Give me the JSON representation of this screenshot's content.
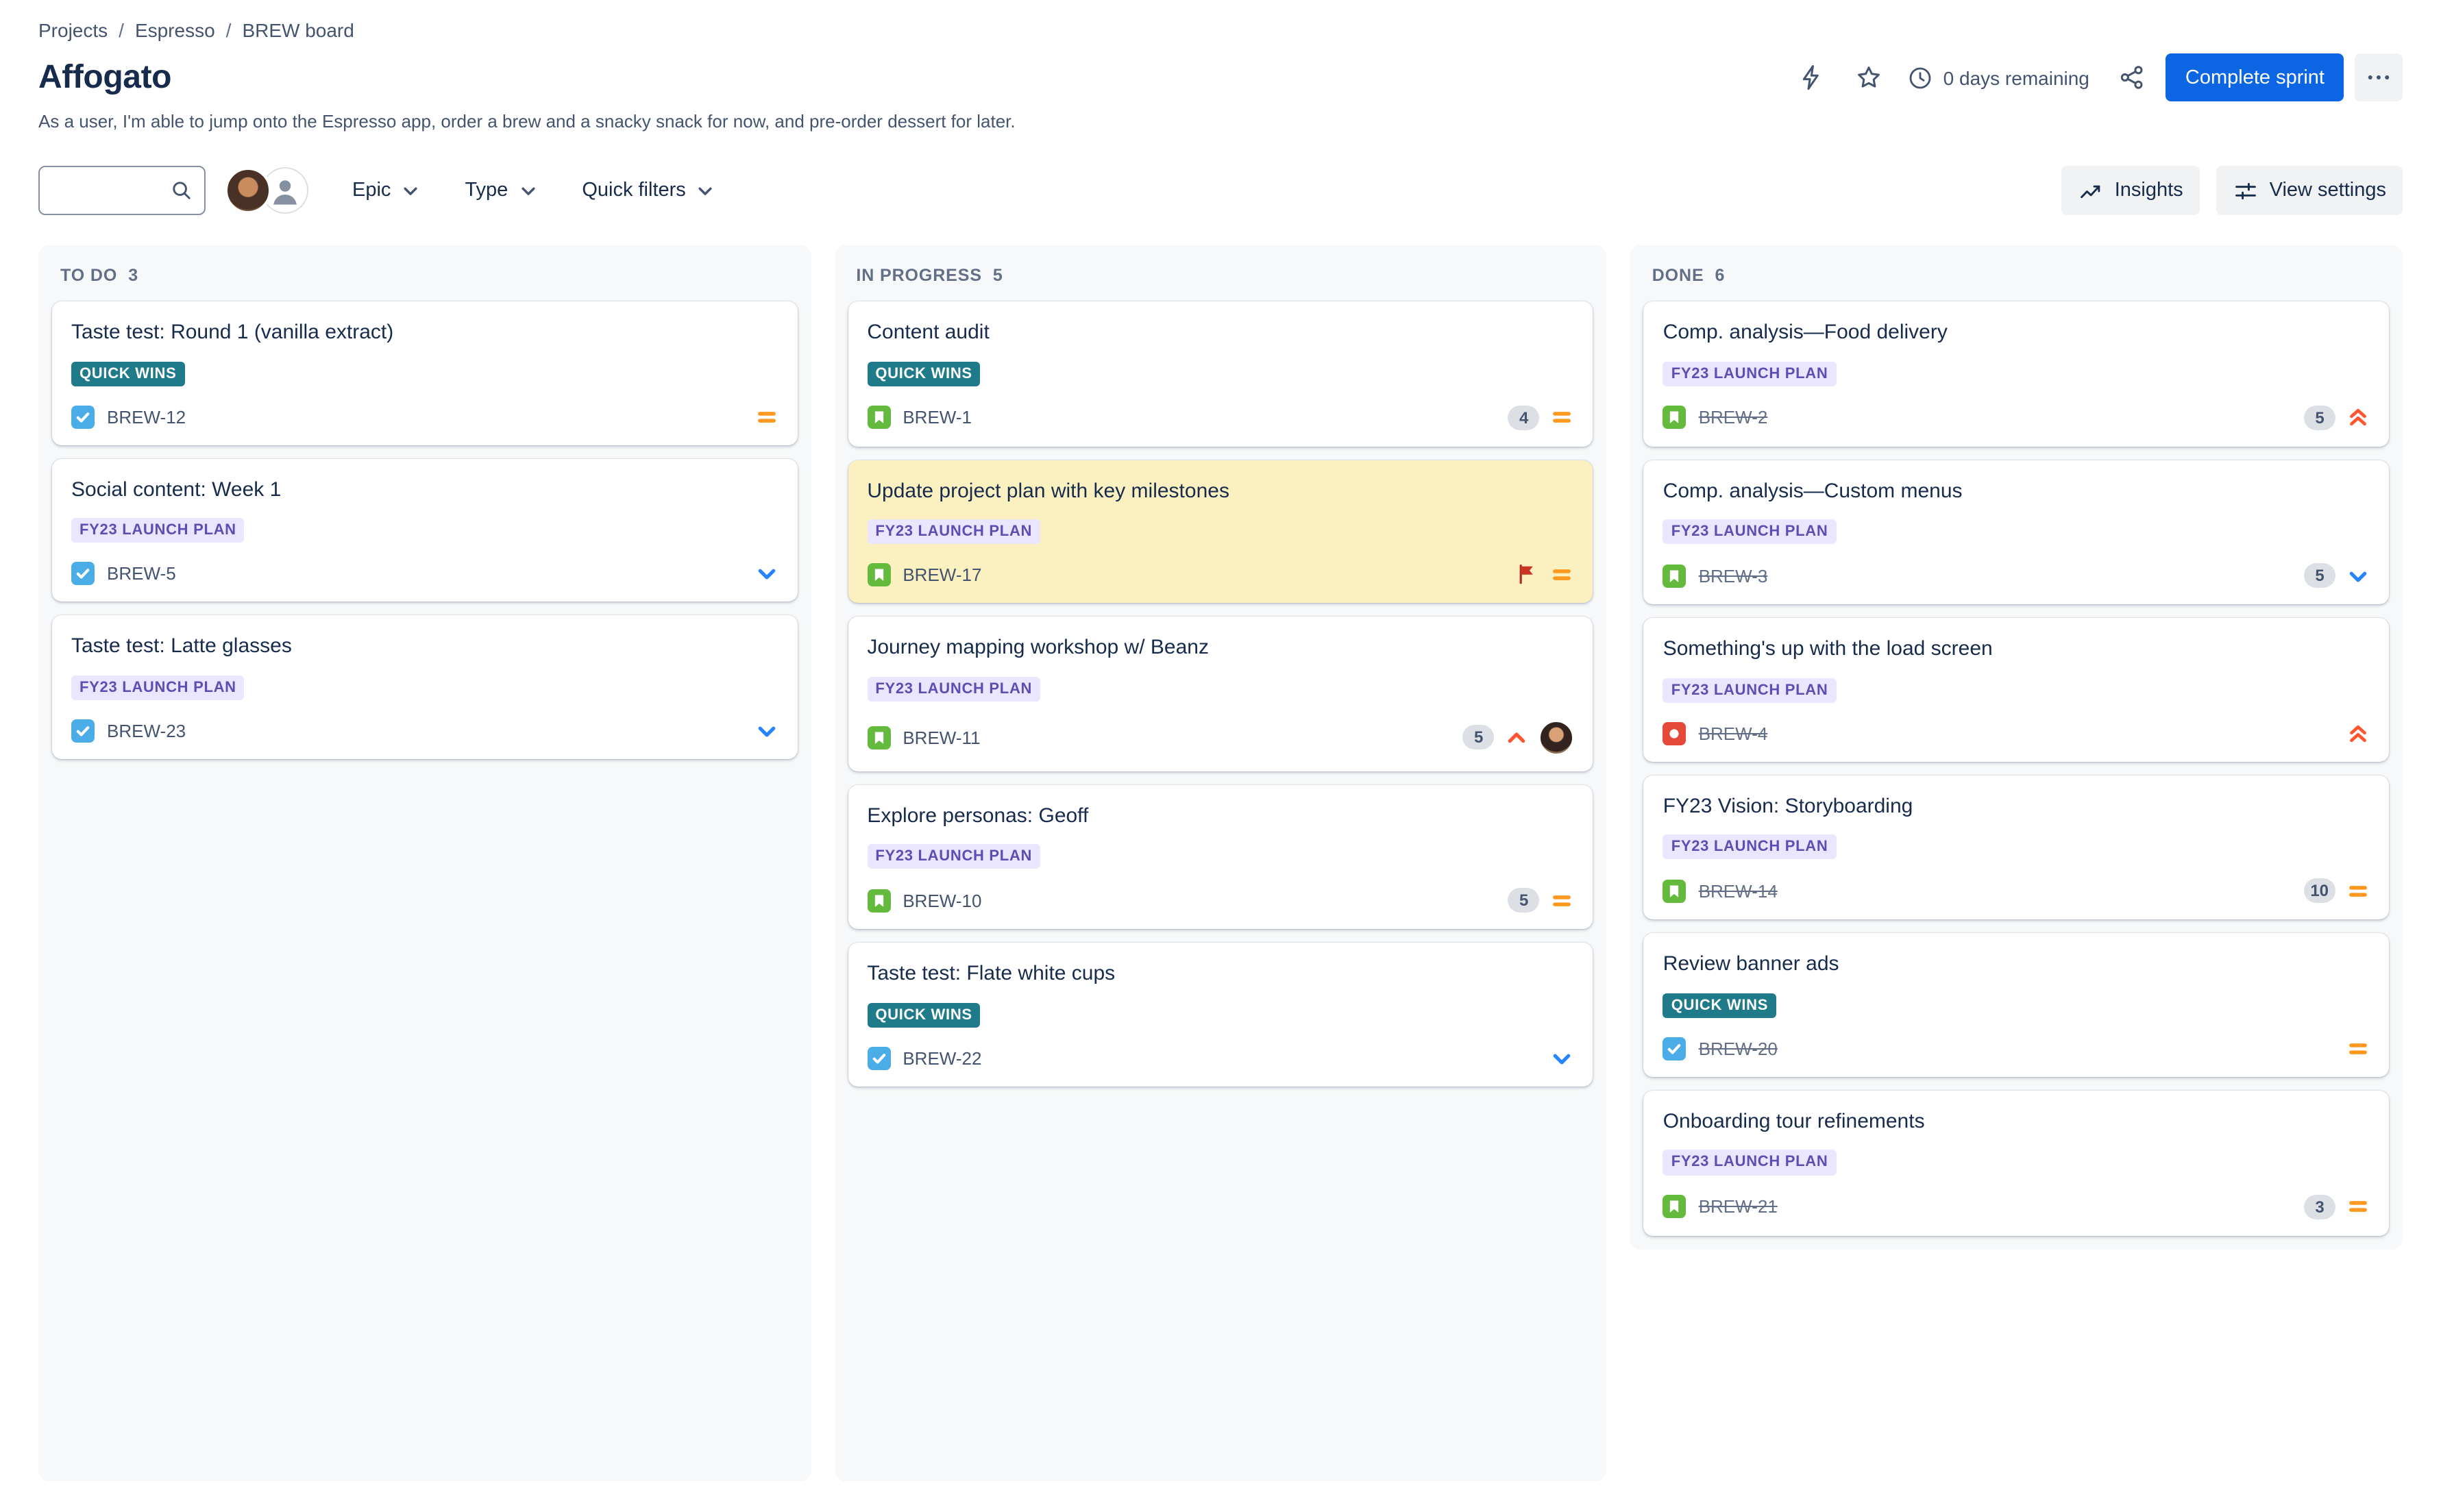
{
  "breadcrumb": {
    "separator": "/",
    "items": [
      "Projects",
      "Espresso",
      "BREW board"
    ]
  },
  "header": {
    "title": "Affogato",
    "description": "As a user, I'm able to jump onto the Espresso app, order a brew and a snacky snack for now, and pre-order dessert for later.",
    "days_remaining": "0 days remaining",
    "complete_sprint_label": "Complete sprint"
  },
  "toolbar": {
    "search_value": "",
    "filters": {
      "epic": "Epic",
      "type": "Type",
      "quick_filters": "Quick filters"
    },
    "insights_label": "Insights",
    "view_settings_label": "View settings"
  },
  "board": {
    "columns": [
      {
        "title": "TO DO",
        "count": 3,
        "cards": [
          {
            "title": "Taste test: Round 1 (vanilla extract)",
            "epic_label": "QUICK WINS",
            "epic_variant": "teal",
            "key": "BREW-12",
            "type": "task",
            "priority": "medium",
            "estimate": null,
            "flagged": false,
            "highlighted": false,
            "done": false,
            "has_avatar": false
          },
          {
            "title": "Social content: Week 1",
            "epic_label": "FY23 LAUNCH PLAN",
            "epic_variant": "purple",
            "key": "BREW-5",
            "type": "task",
            "priority": "low",
            "estimate": null,
            "flagged": false,
            "highlighted": false,
            "done": false,
            "has_avatar": false
          },
          {
            "title": "Taste test: Latte glasses",
            "epic_label": "FY23 LAUNCH PLAN",
            "epic_variant": "purple",
            "key": "BREW-23",
            "type": "task",
            "priority": "low",
            "estimate": null,
            "flagged": false,
            "highlighted": false,
            "done": false,
            "has_avatar": false
          }
        ]
      },
      {
        "title": "IN PROGRESS",
        "count": 5,
        "cards": [
          {
            "title": "Content audit",
            "epic_label": "QUICK WINS",
            "epic_variant": "teal",
            "key": "BREW-1",
            "type": "story",
            "priority": "medium",
            "estimate": 4,
            "flagged": false,
            "highlighted": false,
            "done": false,
            "has_avatar": false
          },
          {
            "title": "Update project plan with key milestones",
            "epic_label": "FY23 LAUNCH PLAN",
            "epic_variant": "purple",
            "key": "BREW-17",
            "type": "story",
            "priority": "medium",
            "estimate": null,
            "flagged": true,
            "highlighted": true,
            "done": false,
            "has_avatar": false
          },
          {
            "title": "Journey mapping workshop w/ Beanz",
            "epic_label": "FY23 LAUNCH PLAN",
            "epic_variant": "purple",
            "key": "BREW-11",
            "type": "story",
            "priority": "high",
            "estimate": 5,
            "flagged": false,
            "highlighted": false,
            "done": false,
            "has_avatar": true
          },
          {
            "title": "Explore personas: Geoff",
            "epic_label": "FY23 LAUNCH PLAN",
            "epic_variant": "purple",
            "key": "BREW-10",
            "type": "story",
            "priority": "medium",
            "estimate": 5,
            "flagged": false,
            "highlighted": false,
            "done": false,
            "has_avatar": false
          },
          {
            "title": "Taste test: Flate white cups",
            "epic_label": "QUICK WINS",
            "epic_variant": "teal",
            "key": "BREW-22",
            "type": "task",
            "priority": "low",
            "estimate": null,
            "flagged": false,
            "highlighted": false,
            "done": false,
            "has_avatar": false
          }
        ]
      },
      {
        "title": "DONE",
        "count": 6,
        "cards": [
          {
            "title": "Comp. analysis—Food delivery",
            "epic_label": "FY23 LAUNCH PLAN",
            "epic_variant": "purple",
            "key": "BREW-2",
            "type": "story",
            "priority": "highest",
            "estimate": 5,
            "flagged": false,
            "highlighted": false,
            "done": true,
            "has_avatar": false
          },
          {
            "title": "Comp. analysis—Custom menus",
            "epic_label": "FY23 LAUNCH PLAN",
            "epic_variant": "purple",
            "key": "BREW-3",
            "type": "story",
            "priority": "low",
            "estimate": 5,
            "flagged": false,
            "highlighted": false,
            "done": true,
            "has_avatar": false
          },
          {
            "title": "Something's up with the load screen",
            "epic_label": "FY23 LAUNCH PLAN",
            "epic_variant": "purple",
            "key": "BREW-4",
            "type": "bug",
            "priority": "highest",
            "estimate": null,
            "flagged": false,
            "highlighted": false,
            "done": true,
            "has_avatar": false
          },
          {
            "title": "FY23 Vision: Storyboarding",
            "epic_label": "FY23 LAUNCH PLAN",
            "epic_variant": "purple",
            "key": "BREW-14",
            "type": "story",
            "priority": "medium",
            "estimate": 10,
            "flagged": false,
            "highlighted": false,
            "done": true,
            "has_avatar": false
          },
          {
            "title": "Review banner ads",
            "epic_label": "QUICK WINS",
            "epic_variant": "teal",
            "key": "BREW-20",
            "type": "task",
            "priority": "medium",
            "estimate": null,
            "flagged": false,
            "highlighted": false,
            "done": true,
            "has_avatar": false
          },
          {
            "title": "Onboarding tour refinements",
            "epic_label": "FY23 LAUNCH PLAN",
            "epic_variant": "purple",
            "key": "BREW-21",
            "type": "story",
            "priority": "medium",
            "estimate": 3,
            "flagged": false,
            "highlighted": false,
            "done": true,
            "has_avatar": false
          }
        ]
      }
    ]
  },
  "colors": {
    "primary_button": "#0C66E4",
    "epic_teal_bg": "#1F7A8A",
    "epic_purple_bg": "#EAE6FF",
    "epic_purple_text": "#5E4DB2",
    "flagged_card_bg": "#FBF0C0",
    "column_bg": "#F7F8F9",
    "priority_medium": "#FF991F",
    "priority_low": "#2684FF",
    "priority_high": "#FF5630",
    "task_icon": "#4BADE8",
    "story_icon": "#63BA3C",
    "bug_icon": "#E5493A",
    "flag_icon": "#CA3521"
  }
}
